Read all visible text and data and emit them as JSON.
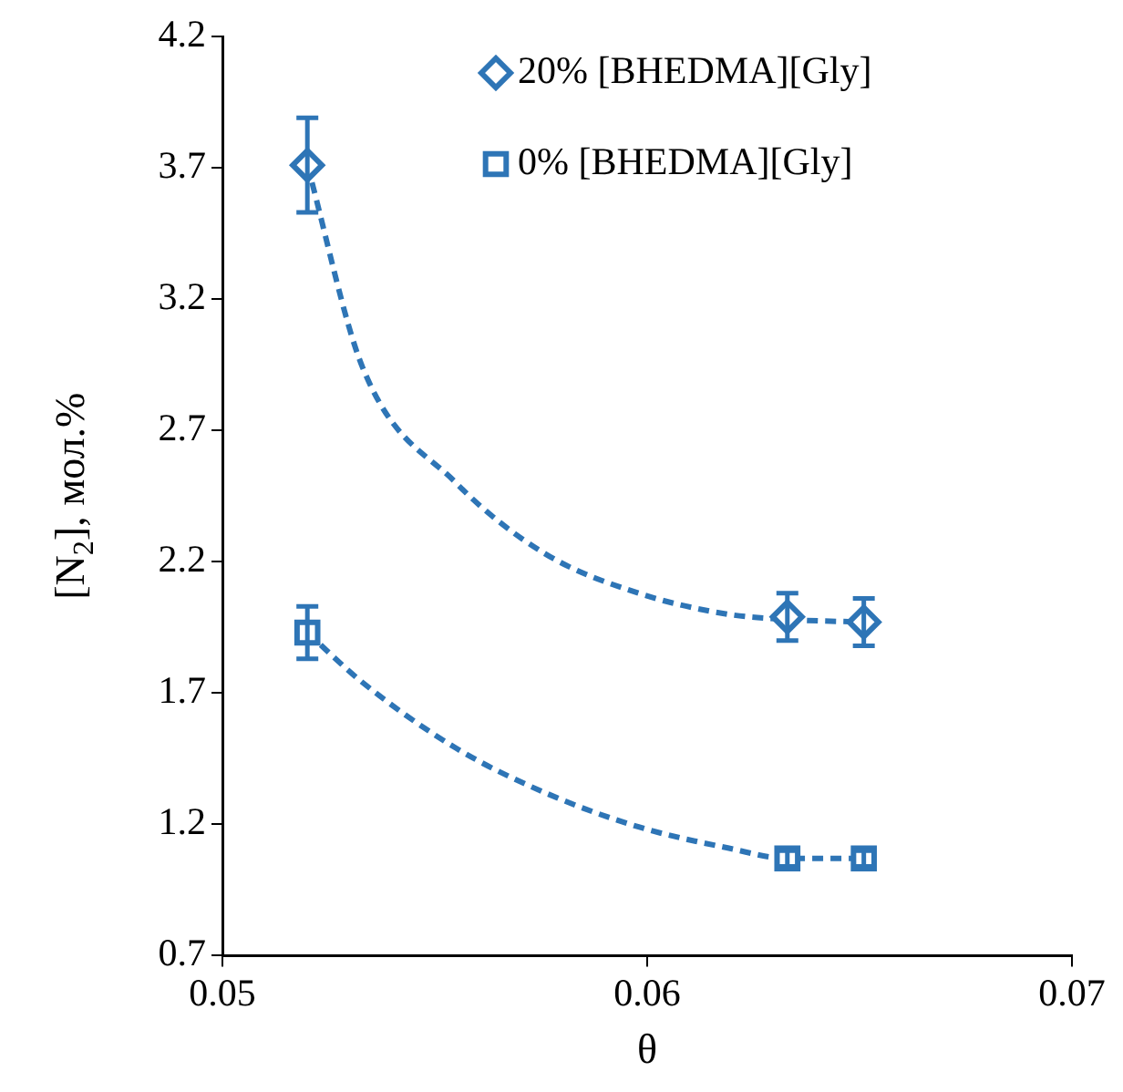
{
  "chart_data": {
    "type": "scatter",
    "xlabel": "θ",
    "ylabel": "[N$_{2}$], мол.%",
    "xlim": [
      0.05,
      0.07
    ],
    "xticks": [
      0.05,
      0.06,
      0.07
    ],
    "ylim": [
      0.7,
      4.2
    ],
    "yticks": [
      0.7,
      1.2,
      1.7,
      2.2,
      2.7,
      3.2,
      3.7,
      4.2
    ],
    "grid": false,
    "legend": "top right",
    "series": [
      {
        "name": "20% [BHEDMA][Gly]",
        "marker": "diamond",
        "color": "#2e75b6",
        "x": [
          0.052,
          0.0633,
          0.0651
        ],
        "values": [
          3.71,
          1.99,
          1.97
        ],
        "errors": [
          0.18,
          0.09,
          0.09
        ]
      },
      {
        "name": "0% [BHEDMA][Gly]",
        "marker": "square",
        "color": "#2e75b6",
        "x": [
          0.052,
          0.0633,
          0.0651
        ],
        "values": [
          1.93,
          1.07,
          1.07
        ],
        "errors": [
          0.1,
          0.03,
          0.03
        ]
      },
      {
        "type": "line",
        "marker": "none",
        "line_style": "dashed",
        "color": "#2e75b6",
        "x": [
          0.052,
          0.0533,
          0.0555,
          0.0576,
          0.0598,
          0.0619,
          0.0633,
          0.0651
        ],
        "values": [
          3.71,
          2.94,
          2.5,
          2.23,
          2.08,
          2.0,
          1.98,
          1.97
        ]
      },
      {
        "type": "line",
        "marker": "none",
        "line_style": "dashed",
        "color": "#2e75b6",
        "x": [
          0.052,
          0.0533,
          0.0555,
          0.0576,
          0.0598,
          0.0619,
          0.0633,
          0.0651
        ],
        "values": [
          1.93,
          1.74,
          1.49,
          1.32,
          1.19,
          1.11,
          1.07,
          1.07
        ]
      }
    ]
  }
}
